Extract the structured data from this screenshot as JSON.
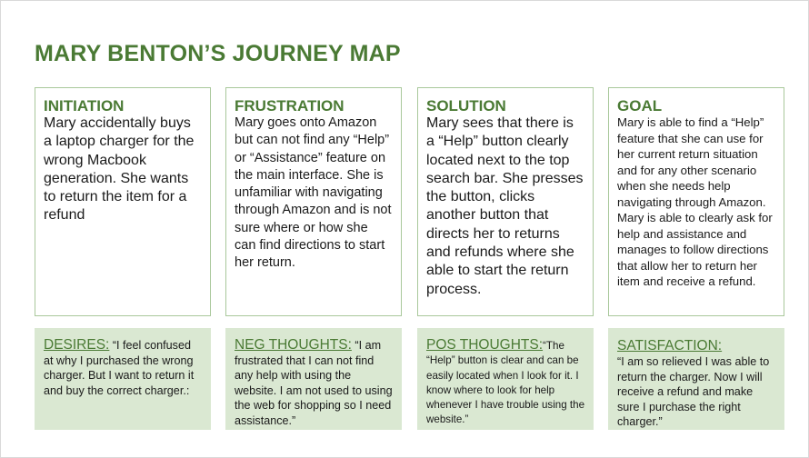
{
  "title": "MARY BENTON’S JOURNEY MAP",
  "stages": [
    {
      "heading": "INITIATION",
      "body": "Mary accidentally buys a laptop charger for the wrong Macbook generation. She wants to return the item for a refund"
    },
    {
      "heading": "FRUSTRATION",
      "body": "Mary goes onto Amazon but can not find any “Help” or “Assistance” feature on the main interface. She is unfamiliar with navigating through Amazon and is not sure where or how she can find directions to start her return."
    },
    {
      "heading": "SOLUTION",
      "body": "Mary sees that there is a “Help” button clearly located next to the top search bar. She presses the button, clicks another button that directs her to returns and refunds where she able to start the return process."
    },
    {
      "heading": "GOAL",
      "body": "Mary is able to find a “Help” feature that she can use for her current return situation and for any other scenario when she needs help navigating through Amazon. Mary is able to clearly ask for help and assistance and manages to follow directions that allow her to return her item and receive a refund."
    }
  ],
  "notes": [
    {
      "label": "DESIRES:",
      "text": " “I feel confused at why I purchased the wrong charger. But I want to return it and buy the correct charger.:"
    },
    {
      "label": "NEG THOUGHTS:",
      "text": " “I am frustrated that I can not find any help with using the website. I am not used to using the web for shopping so I need assistance.”"
    },
    {
      "label": "POS THOUGHTS:",
      "text": "“The “Help” button is clear and can be easily located when I look for it. I know where to look for help whenever I have trouble using the website.”"
    },
    {
      "label": "SATISFACTION:",
      "text": "“I am so relieved I was able to return the charger. Now I will receive a refund and make sure I purchase the right charger.”"
    }
  ]
}
